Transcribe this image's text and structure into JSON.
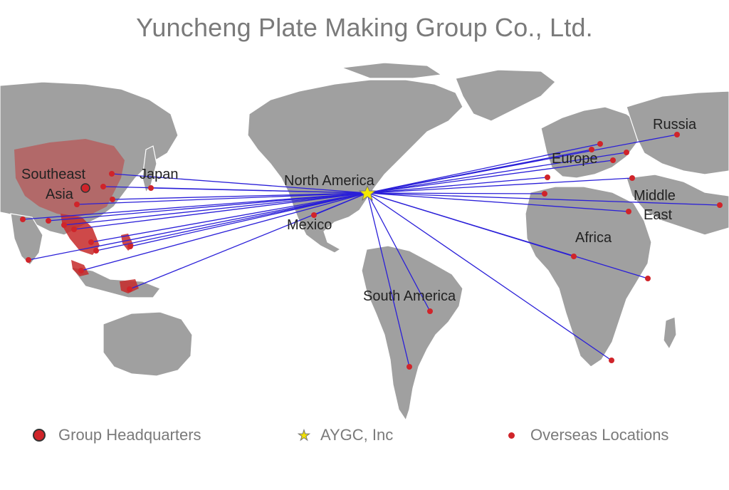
{
  "title": "Yuncheng Plate Making Group Co., Ltd.",
  "colors": {
    "land": "#a0a0a0",
    "highlight": "#c62a2a",
    "route": "#2a1fd8",
    "dot": "#d0242a",
    "star": "#f5e800"
  },
  "region_labels": {
    "southeast_asia": [
      "Southeast",
      "Asia"
    ],
    "japan": "Japan",
    "north_america": "North America",
    "mexico": "Mexico",
    "south_america": "South America",
    "europe": "Europe",
    "russia": "Russia",
    "middle_east": [
      "Middle",
      "East"
    ],
    "africa": "Africa"
  },
  "legend": {
    "headquarters": "Group Headquarters",
    "aygc": "AYGC, Inc",
    "overseas": "Overseas Locations"
  }
}
